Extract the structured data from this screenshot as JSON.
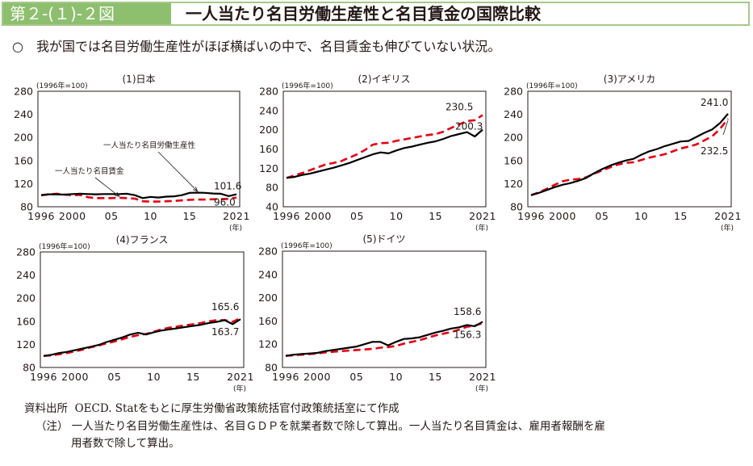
{
  "header": {
    "figure_number": "第２-(１)-２図",
    "title": "一人当たり名目労働生産性と名目賃金の国際比較"
  },
  "summary": {
    "bullet": "○",
    "text": "我が国では名目労働生産性がほぼ横ばいの中で、名目賃金も伸びていない状況。"
  },
  "footer": {
    "source_label": "資料出所",
    "source_text": "OECD. Statをもとに厚生労働省政策統括官付政策統括室にて作成",
    "note_label": "（注）",
    "note_text_line1": "一人当たり名目労働生産性は、名目ＧＤＰを就業者数で除して算出。一人当たり名目賃金は、雇用者報酬を雇",
    "note_text_line2": "用者数で除して算出。"
  },
  "chart_data": [
    {
      "type": "line",
      "title": "(1)日本",
      "unit_label": "(1996年=100)",
      "xlabel": "(年)",
      "xlim": [
        1996,
        2021
      ],
      "ylim": [
        80,
        280
      ],
      "yticks": [
        80,
        120,
        160,
        200,
        240,
        280
      ],
      "xticks": [
        {
          "value": 1996,
          "label": "1996"
        },
        {
          "value": 2000,
          "label": "2000"
        },
        {
          "value": 2005,
          "label": "05"
        },
        {
          "value": 2010,
          "label": "10"
        },
        {
          "value": 2015,
          "label": "15"
        },
        {
          "value": 2021,
          "label": "2021"
        }
      ],
      "x": [
        1996,
        1997,
        1998,
        1999,
        2000,
        2001,
        2002,
        2003,
        2004,
        2005,
        2006,
        2007,
        2008,
        2009,
        2010,
        2011,
        2012,
        2013,
        2014,
        2015,
        2016,
        2017,
        2018,
        2019,
        2020,
        2021
      ],
      "series": [
        {
          "name": "一人当たり名目労働生産性",
          "style": "solid",
          "color": "#000000",
          "values": [
            100,
            101.5,
            101.5,
            101,
            102,
            102.5,
            102,
            101.5,
            102,
            102,
            102,
            102.5,
            100,
            95,
            97,
            96,
            97.5,
            98,
            100,
            104,
            104.5,
            104,
            103,
            102.5,
            98.5,
            101.6
          ]
        },
        {
          "name": "一人当たり名目賃金",
          "style": "dashed",
          "color": "#e60012",
          "values": [
            100,
            101.5,
            102.5,
            101,
            100,
            100.5,
            96.5,
            95,
            95,
            95,
            95.5,
            95,
            94,
            89.5,
            89,
            89,
            89.5,
            90,
            91,
            92,
            92.5,
            92.5,
            93,
            93,
            93.5,
            96.0
          ]
        }
      ],
      "annotations": [
        {
          "text": "一人当たり名目労働生産性",
          "points_to": {
            "x": 2016,
            "y": 104
          }
        },
        {
          "text": "一人当たり名目賃金",
          "points_to": {
            "x": 2006,
            "y": 95
          }
        }
      ],
      "end_labels": [
        "101.6",
        "96.0"
      ]
    },
    {
      "type": "line",
      "title": "(2)イギリス",
      "unit_label": "(1996年=100)",
      "xlabel": "(年)",
      "xlim": [
        1996,
        2021
      ],
      "ylim": [
        40,
        280
      ],
      "yticks": [
        40,
        80,
        120,
        160,
        200,
        240,
        280
      ],
      "xticks": [
        {
          "value": 1996,
          "label": "1996"
        },
        {
          "value": 2000,
          "label": "2000"
        },
        {
          "value": 2005,
          "label": "05"
        },
        {
          "value": 2010,
          "label": "10"
        },
        {
          "value": 2015,
          "label": "15"
        },
        {
          "value": 2021,
          "label": "2021"
        }
      ],
      "x": [
        1996,
        1997,
        1998,
        1999,
        2000,
        2001,
        2002,
        2003,
        2004,
        2005,
        2006,
        2007,
        2008,
        2009,
        2010,
        2011,
        2012,
        2013,
        2014,
        2015,
        2016,
        2017,
        2018,
        2019,
        2020,
        2021
      ],
      "series": [
        {
          "name": "一人当たり名目労働生産性",
          "style": "solid",
          "color": "#000000",
          "values": [
            100,
            102,
            106,
            109,
            113,
            117,
            121,
            126,
            131,
            137,
            143,
            149,
            153,
            151,
            157,
            162,
            165,
            169,
            173,
            176,
            181,
            187,
            191,
            195,
            186,
            200.3
          ]
        },
        {
          "name": "一人当たり名目賃金",
          "style": "dashed",
          "color": "#e60012",
          "values": [
            100,
            105,
            110,
            116,
            122,
            128,
            131,
            135,
            142,
            149,
            158,
            169,
            172,
            173,
            177,
            180,
            183,
            186,
            189,
            191,
            196,
            204,
            211,
            218,
            220,
            230.5
          ]
        }
      ],
      "end_labels": [
        "230.5",
        "200.3"
      ]
    },
    {
      "type": "line",
      "title": "(3)アメリカ",
      "unit_label": "(1996年=100)",
      "xlabel": "(年)",
      "xlim": [
        1996,
        2021
      ],
      "ylim": [
        80,
        280
      ],
      "yticks": [
        80,
        120,
        160,
        200,
        240,
        280
      ],
      "xticks": [
        {
          "value": 1996,
          "label": "1996"
        },
        {
          "value": 2000,
          "label": "2000"
        },
        {
          "value": 2005,
          "label": "05"
        },
        {
          "value": 2010,
          "label": "10"
        },
        {
          "value": 2015,
          "label": "15"
        },
        {
          "value": 2021,
          "label": "2021"
        }
      ],
      "x": [
        1996,
        1997,
        1998,
        1999,
        2000,
        2001,
        2002,
        2003,
        2004,
        2005,
        2006,
        2007,
        2008,
        2009,
        2010,
        2011,
        2012,
        2013,
        2014,
        2015,
        2016,
        2017,
        2018,
        2019,
        2020,
        2021
      ],
      "series": [
        {
          "name": "一人当たり名目労働生産性",
          "style": "solid",
          "color": "#000000",
          "values": [
            100,
            104,
            109,
            114,
            118,
            121,
            125,
            130,
            138,
            145,
            151,
            156,
            160,
            163,
            170,
            176,
            180,
            185,
            189,
            193,
            194,
            201,
            208,
            214,
            225,
            241.0
          ]
        },
        {
          "name": "一人当たり名目賃金",
          "style": "dashed",
          "color": "#e60012",
          "values": [
            100,
            105,
            111,
            118,
            124,
            127,
            128,
            131,
            137,
            143,
            148,
            153,
            156,
            157,
            161,
            165,
            168,
            171,
            176,
            181,
            184,
            188,
            195,
            202,
            215,
            232.5
          ]
        }
      ],
      "end_labels": [
        "241.0",
        "232.5"
      ]
    },
    {
      "type": "line",
      "title": "(4)フランス",
      "unit_label": "(1996年=100)",
      "xlabel": "(年)",
      "xlim": [
        1996,
        2021
      ],
      "ylim": [
        80,
        280
      ],
      "yticks": [
        80,
        120,
        160,
        200,
        240,
        280
      ],
      "xticks": [
        {
          "value": 1996,
          "label": "1996"
        },
        {
          "value": 2000,
          "label": "2000"
        },
        {
          "value": 2005,
          "label": "05"
        },
        {
          "value": 2010,
          "label": "10"
        },
        {
          "value": 2015,
          "label": "15"
        },
        {
          "value": 2021,
          "label": "2021"
        }
      ],
      "x": [
        1996,
        1997,
        1998,
        1999,
        2000,
        2001,
        2002,
        2003,
        2004,
        2005,
        2006,
        2007,
        2008,
        2009,
        2010,
        2011,
        2012,
        2013,
        2014,
        2015,
        2016,
        2017,
        2018,
        2019,
        2020,
        2021
      ],
      "series": [
        {
          "name": "一人当たり名目労働生産性",
          "style": "solid",
          "color": "#000000",
          "values": [
            100,
            102,
            105,
            107,
            110,
            113,
            116,
            119,
            124,
            128,
            132,
            137,
            140,
            137,
            141,
            144,
            146,
            148,
            150,
            152,
            154,
            157,
            159,
            162,
            155,
            163.7
          ]
        },
        {
          "name": "一人当たり名目賃金",
          "style": "dashed",
          "color": "#e60012",
          "values": [
            100,
            101,
            103,
            105,
            108,
            111,
            115,
            118,
            122,
            125,
            129,
            133,
            136,
            138,
            142,
            146,
            149,
            151,
            153,
            155,
            157,
            160,
            162,
            162,
            159,
            165.6
          ]
        }
      ],
      "end_labels": [
        "165.6",
        "163.7"
      ]
    },
    {
      "type": "line",
      "title": "(5)ドイツ",
      "unit_label": "(1996年=100)",
      "xlabel": "(年)",
      "xlim": [
        1996,
        2021
      ],
      "ylim": [
        80,
        280
      ],
      "yticks": [
        80,
        120,
        160,
        200,
        240,
        280
      ],
      "xticks": [
        {
          "value": 1996,
          "label": "1996"
        },
        {
          "value": 2000,
          "label": "2000"
        },
        {
          "value": 2005,
          "label": "05"
        },
        {
          "value": 2010,
          "label": "10"
        },
        {
          "value": 2015,
          "label": "15"
        },
        {
          "value": 2021,
          "label": "2021"
        }
      ],
      "x": [
        1996,
        1997,
        1998,
        1999,
        2000,
        2001,
        2002,
        2003,
        2004,
        2005,
        2006,
        2007,
        2008,
        2009,
        2010,
        2011,
        2012,
        2013,
        2014,
        2015,
        2016,
        2017,
        2018,
        2019,
        2020,
        2021
      ],
      "series": [
        {
          "name": "一人当たり名目労働生産性",
          "style": "solid",
          "color": "#000000",
          "values": [
            100,
            102,
            103,
            104,
            105,
            108,
            110,
            112,
            114,
            116,
            120,
            124,
            124,
            118,
            124,
            129,
            130,
            132,
            136,
            140,
            143,
            147,
            149,
            153,
            151,
            158.6
          ]
        },
        {
          "name": "一人当たり名目賃金",
          "style": "dashed",
          "color": "#e60012",
          "values": [
            100,
            101,
            102,
            103,
            104,
            106,
            107,
            108,
            109,
            110,
            111,
            112,
            114,
            115,
            117,
            121,
            124,
            127,
            131,
            135,
            138,
            141,
            145,
            150,
            152,
            156.3
          ]
        }
      ],
      "end_labels": [
        "158.6",
        "156.3"
      ]
    }
  ]
}
